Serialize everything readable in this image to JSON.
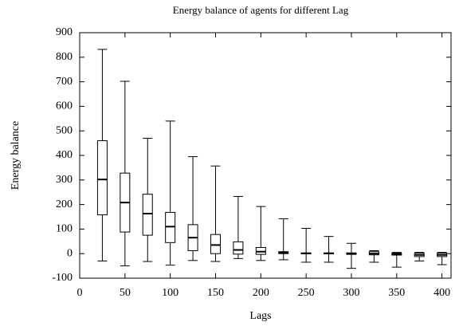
{
  "chart_data": {
    "type": "box",
    "title": "Energy balance of agents for different Lag",
    "x_label": "Lags",
    "y_label": "Energy balance",
    "x": [
      25,
      50,
      75,
      100,
      125,
      150,
      175,
      200,
      225,
      250,
      275,
      300,
      325,
      350,
      375,
      400
    ],
    "low": [
      -30,
      -50,
      -32,
      -47,
      -28,
      -32,
      -20,
      -28,
      -25,
      -35,
      -35,
      -60,
      -35,
      -55,
      -30,
      -45
    ],
    "q1": [
      158,
      88,
      75,
      45,
      12,
      0,
      -2,
      -3,
      0,
      -1,
      -1,
      -3,
      -5,
      -6,
      -12,
      -12
    ],
    "median": [
      302,
      208,
      163,
      110,
      65,
      35,
      15,
      8,
      4,
      1,
      1,
      0,
      0,
      -2,
      -5,
      -5
    ],
    "q3": [
      460,
      328,
      242,
      168,
      118,
      78,
      48,
      25,
      8,
      3,
      3,
      3,
      8,
      2,
      2,
      2
    ],
    "high": [
      832,
      702,
      470,
      540,
      395,
      357,
      233,
      192,
      142,
      103,
      70,
      42,
      12,
      5,
      5,
      5
    ],
    "color": "#000000",
    "xlim": [
      0,
      410
    ],
    "ylim": [
      -100,
      900
    ],
    "xticks": [
      0,
      50,
      100,
      150,
      200,
      250,
      300,
      350,
      400
    ],
    "yticks": [
      -100,
      0,
      100,
      200,
      300,
      400,
      500,
      600,
      700,
      800,
      900
    ]
  }
}
